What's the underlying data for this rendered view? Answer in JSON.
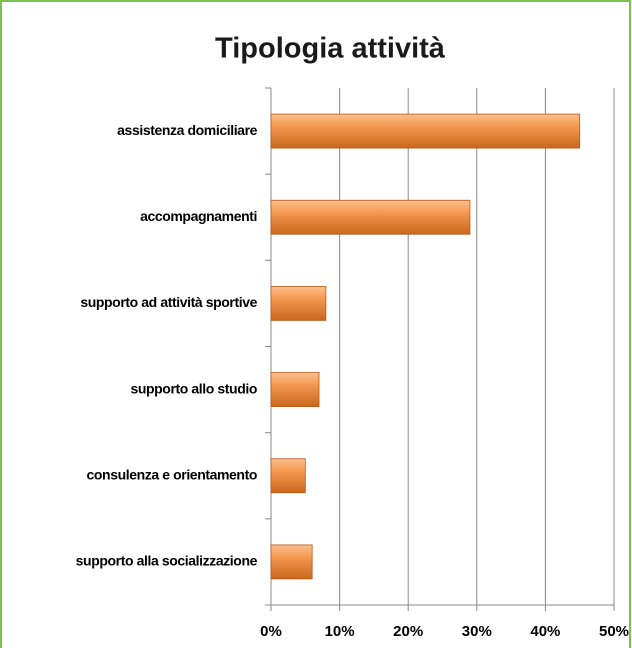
{
  "chart_data": {
    "type": "bar",
    "orientation": "horizontal",
    "title": "Tipologia attività",
    "categories": [
      "assistenza domiciliare",
      "accompagnamenti",
      "supporto ad attività sportive",
      "supporto allo studio",
      "consulenza e orientamento",
      "supporto alla socializzazione"
    ],
    "values": [
      45,
      29,
      8,
      7,
      5,
      6
    ],
    "color": "#f0883a",
    "xlim": [
      0,
      50
    ],
    "xticks": [
      {
        "value": 0,
        "label": "0%"
      },
      {
        "value": 10,
        "label": "10%"
      },
      {
        "value": 20,
        "label": "20%"
      },
      {
        "value": 30,
        "label": "30%"
      },
      {
        "value": 40,
        "label": "40%"
      },
      {
        "value": 50,
        "label": "50%"
      }
    ],
    "grid": true
  }
}
